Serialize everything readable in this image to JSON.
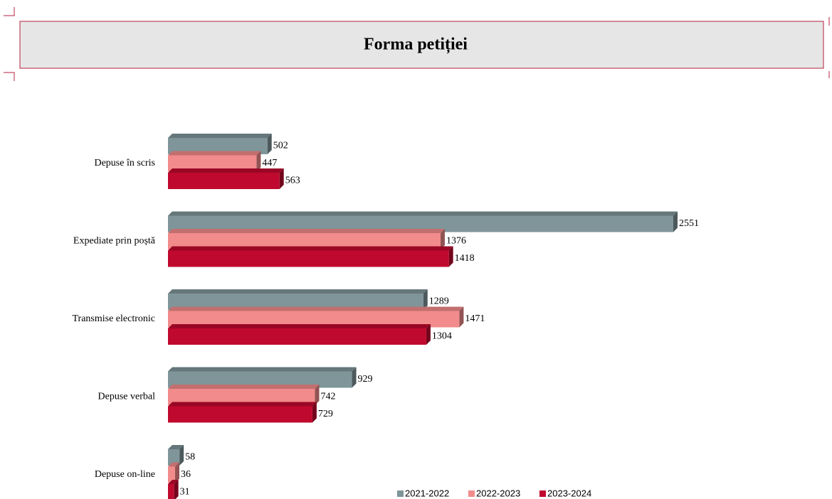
{
  "chart_data": {
    "type": "bar",
    "orientation": "horizontal",
    "title": "Forma petiției",
    "categories": [
      "Depuse în scris",
      "Expediate prin poștă",
      "Transmise electronic",
      "Depuse verbal",
      "Depuse on-line"
    ],
    "series": [
      {
        "name": "2021-2022",
        "color": "#7f959a",
        "values": [
          502,
          2551,
          1289,
          929,
          58
        ]
      },
      {
        "name": "2022-2023",
        "color": "#f28b8b",
        "values": [
          447,
          1376,
          1471,
          742,
          36
        ]
      },
      {
        "name": "2023-2024",
        "color": "#c0092e",
        "values": [
          563,
          1418,
          1304,
          729,
          31
        ]
      }
    ],
    "legend": "bottom"
  }
}
